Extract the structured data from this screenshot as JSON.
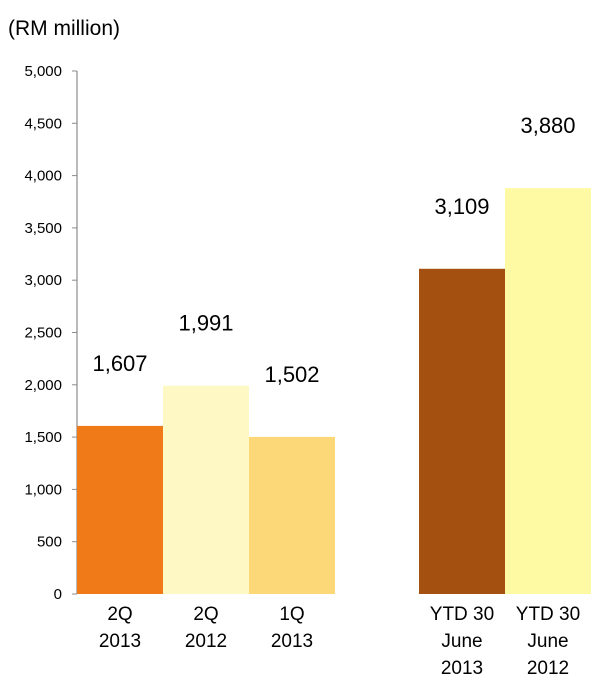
{
  "chart_data": {
    "type": "bar",
    "unit_label": "(RM million)",
    "categories": [
      [
        "2Q",
        "2013"
      ],
      [
        "2Q",
        "2012"
      ],
      [
        "1Q",
        "2013"
      ],
      [
        "YTD 30",
        "June",
        "2013"
      ],
      [
        "YTD 30",
        "June",
        "2012"
      ]
    ],
    "values": [
      1607,
      1991,
      1502,
      3109,
      3880
    ],
    "value_labels": [
      "1,607",
      "1,991",
      "1,502",
      "3,109",
      "3,880"
    ],
    "colors": [
      "#F07918",
      "#FEF9C4",
      "#FDD879",
      "#A35010",
      "#FEFAA3"
    ],
    "ylim": [
      0,
      5000
    ],
    "yticks": [
      0,
      500,
      1000,
      1500,
      2000,
      2500,
      3000,
      3500,
      4000,
      4500,
      5000
    ],
    "ytick_labels": [
      "0",
      "500",
      "1,000",
      "1,500",
      "2,000",
      "2,500",
      "3,000",
      "3,500",
      "4,000",
      "4,500",
      "5,000"
    ],
    "grid": false,
    "legend": "none"
  }
}
